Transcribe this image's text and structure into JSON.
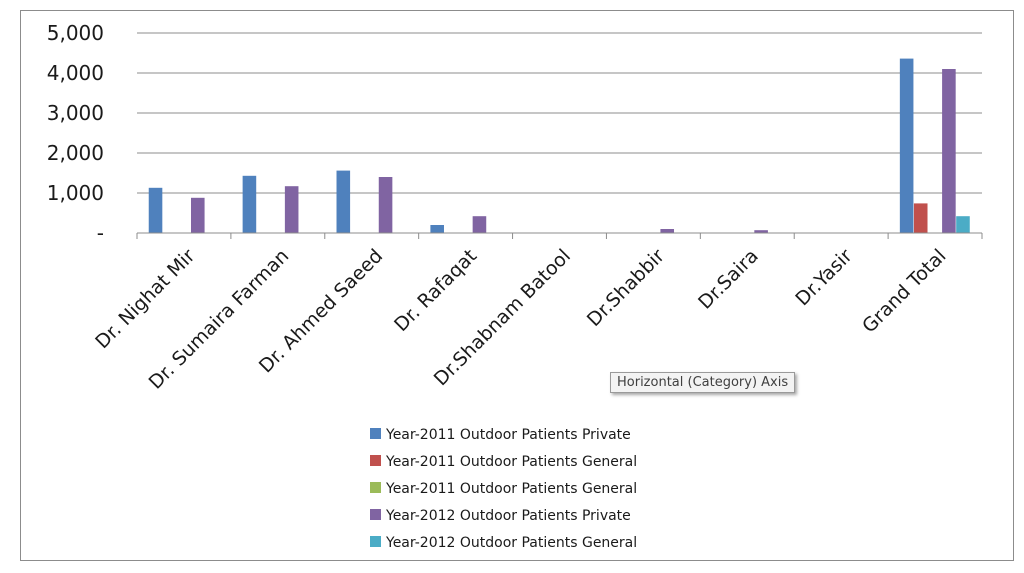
{
  "chart_data": {
    "type": "bar",
    "categories": [
      "Dr. Nighat Mir",
      "Dr. Sumaira Farman",
      "Dr. Ahmed Saeed",
      "Dr. Rafaqat",
      "Dr.Shabnam Batool",
      "Dr.Shabbir",
      "Dr.Saira",
      "Dr.Yasir",
      "Grand Total"
    ],
    "series": [
      {
        "name": "Year-2011 Outdoor Patients Private",
        "color": "#4f81bd",
        "values": [
          1130,
          1430,
          1560,
          200,
          0,
          0,
          0,
          0,
          4360
        ]
      },
      {
        "name": "Year-2011 Outdoor Patients General",
        "color": "#c0504d",
        "values": [
          0,
          0,
          0,
          0,
          0,
          0,
          0,
          0,
          740
        ]
      },
      {
        "name": "Year-2011 Outdoor Patients General",
        "color": "#9bbb59",
        "values": [
          0,
          0,
          0,
          0,
          0,
          0,
          0,
          0,
          0
        ]
      },
      {
        "name": "Year-2012 Outdoor Patients Private",
        "color": "#8064a2",
        "values": [
          880,
          1170,
          1400,
          420,
          0,
          100,
          70,
          0,
          4100
        ]
      },
      {
        "name": "Year-2012 Outdoor Patients General",
        "color": "#4bacc6",
        "values": [
          0,
          0,
          0,
          0,
          0,
          0,
          0,
          0,
          420
        ]
      }
    ],
    "yticks": [
      "-",
      "1,000",
      "2,000",
      "3,000",
      "4,000",
      "5,000"
    ],
    "ylim": [
      0,
      5000
    ],
    "grid": true,
    "legend_position": "bottom"
  },
  "tooltip": {
    "text": "Horizontal (Category) Axis"
  }
}
